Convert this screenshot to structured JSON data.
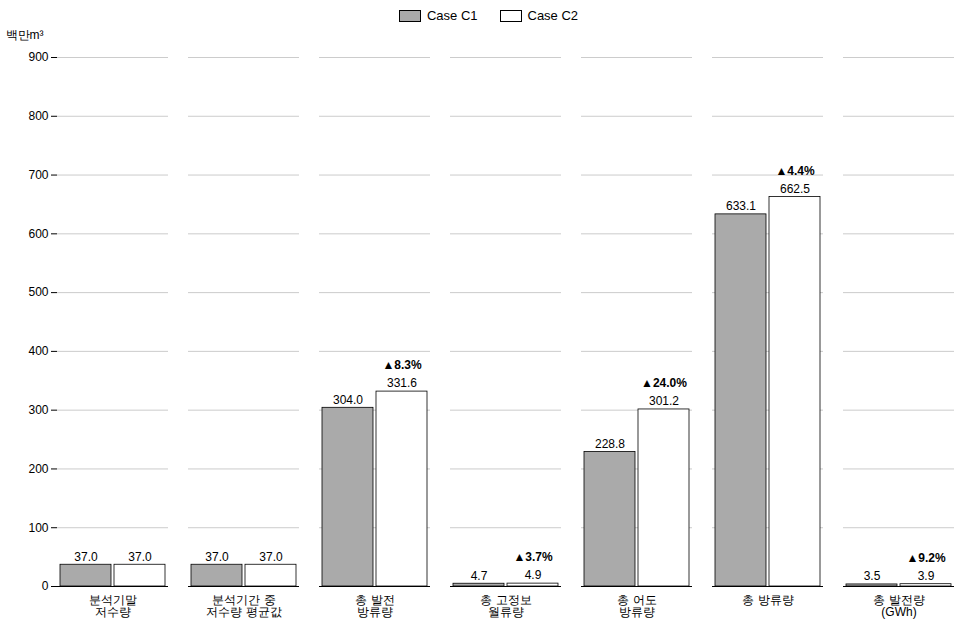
{
  "chart_data": {
    "type": "bar",
    "categories": [
      "분석기말\n저수량",
      "분석기간 중\n저수량 평균값",
      "총 발전\n방류량",
      "총 고정보\n월류량",
      "총 어도\n방류량",
      "총 방류량",
      "총 발전량\n(GWh)"
    ],
    "series": [
      {
        "name": "Case C1",
        "color": "#aaaaaa",
        "values": [
          37.0,
          37.0,
          304.0,
          4.7,
          228.8,
          633.1,
          3.5
        ],
        "value_labels": [
          "37.0",
          "37.0",
          "304.0",
          "4.7",
          "228.8",
          "633.1",
          "3.5"
        ]
      },
      {
        "name": "Case C2",
        "color": "#ffffff",
        "values": [
          37.0,
          37.0,
          331.6,
          4.9,
          301.2,
          662.5,
          3.9
        ],
        "value_labels": [
          "37.0",
          "37.0",
          "331.6",
          "4.9",
          "301.2",
          "662.5",
          "3.9"
        ]
      }
    ],
    "ylabel": "백만m³",
    "ylim": [
      0,
      900
    ],
    "yticks": [
      0,
      100,
      200,
      300,
      400,
      500,
      600,
      700,
      800,
      900
    ],
    "grid": true,
    "legend": "upper center",
    "data_labels": true,
    "annotations": [
      {
        "category": "총 발전\n방류량",
        "text": "▲8.3%"
      },
      {
        "category": "총 고정보\n월류량",
        "text": "▲3.7%"
      },
      {
        "category": "총 어도\n방류량",
        "text": "▲24.0%"
      },
      {
        "category": "총 방류량",
        "text": "▲4.4%"
      },
      {
        "category": "총 발전량\n(GWh)",
        "text": "▲9.2%"
      }
    ]
  }
}
